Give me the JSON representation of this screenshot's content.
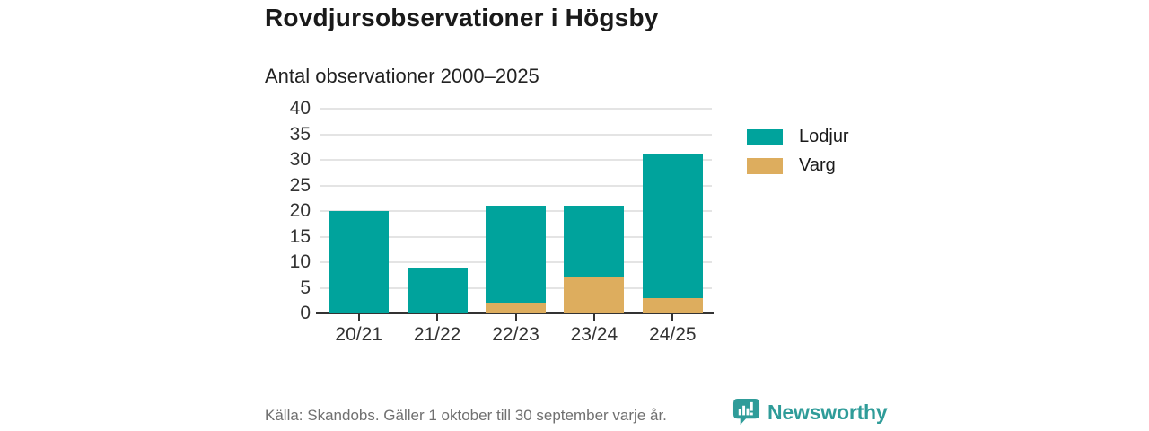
{
  "title": "Rovdjursobservationer i Högsby",
  "subtitle": "Antal observationer 2000–2025",
  "footer": {
    "source": "Källa: Skandobs. Gäller 1 oktober till 30 september varje år.",
    "brand": "Newsworthy",
    "brand_icon": "bar-chart-speech-bubble-icon"
  },
  "colors": {
    "lodjur": "#00a39c",
    "varg": "#ddad5e",
    "brand": "#2f9c99",
    "axis": "#333333",
    "grid": "#e4e4e4",
    "text": "#1a1a1a",
    "muted": "#707070"
  },
  "chart_data": {
    "type": "bar",
    "stacked": true,
    "title": "Rovdjursobservationer i Högsby",
    "subtitle": "Antal observationer 2000–2025",
    "categories": [
      "20/21",
      "21/22",
      "22/23",
      "23/24",
      "24/25"
    ],
    "series": [
      {
        "name": "Lodjur",
        "color_key": "lodjur",
        "values": [
          20,
          9,
          19,
          14,
          28
        ]
      },
      {
        "name": "Varg",
        "color_key": "varg",
        "values": [
          0,
          0,
          2,
          7,
          3
        ]
      }
    ],
    "stack_order_bottom_to_top": [
      "Varg",
      "Lodjur"
    ],
    "totals": [
      20,
      9,
      21,
      21,
      31
    ],
    "xlabel": "",
    "ylabel": "",
    "ylim": [
      0,
      40
    ],
    "yticks": [
      0,
      5,
      10,
      15,
      20,
      25,
      30,
      35,
      40
    ],
    "grid": "horizontal",
    "legend_position": "right"
  }
}
